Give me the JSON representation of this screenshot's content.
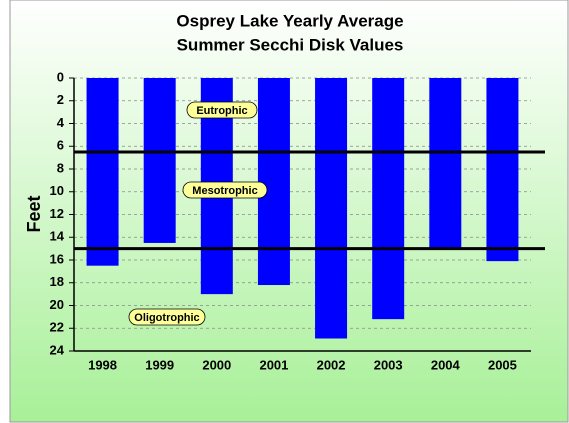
{
  "chart_data": {
    "type": "bar",
    "title": "Osprey Lake Yearly Average",
    "subtitle": "Summer Secchi Disk Values",
    "y_label": "Feet",
    "categories": [
      "1998",
      "1999",
      "2000",
      "2001",
      "2002",
      "2003",
      "2004",
      "2005"
    ],
    "values": [
      16.5,
      14.5,
      19.0,
      18.2,
      22.9,
      21.2,
      14.9,
      16.1
    ],
    "color": "#0000ff",
    "ylim": [
      0,
      24
    ],
    "yticks": [
      0,
      2,
      4,
      6,
      8,
      10,
      12,
      14,
      16,
      18,
      20,
      22,
      24
    ],
    "inverted": true,
    "grid": true,
    "reference_lines": [
      6.5,
      15
    ],
    "annotations": [
      "Eutrophic",
      "Mesotrophic",
      "Oligotrophic"
    ]
  }
}
